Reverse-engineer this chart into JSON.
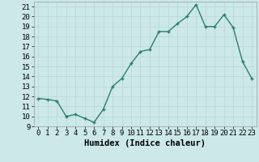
{
  "x": [
    0,
    1,
    2,
    3,
    4,
    5,
    6,
    7,
    8,
    9,
    10,
    11,
    12,
    13,
    14,
    15,
    16,
    17,
    18,
    19,
    20,
    21,
    22,
    23
  ],
  "y": [
    11.8,
    11.7,
    11.55,
    10.0,
    10.2,
    9.8,
    9.4,
    10.7,
    13.0,
    13.8,
    15.3,
    16.5,
    16.7,
    18.5,
    18.5,
    19.3,
    20.0,
    21.2,
    19.0,
    19.0,
    20.2,
    18.9,
    15.5,
    13.8
  ],
  "line_color": "#2e7d6e",
  "marker": "+",
  "marker_size": 3,
  "marker_linewidth": 1.0,
  "xlabel": "Humidex (Indice chaleur)",
  "xlim": [
    -0.5,
    23.5
  ],
  "ylim": [
    9,
    21.5
  ],
  "yticks": [
    9,
    10,
    11,
    12,
    13,
    14,
    15,
    16,
    17,
    18,
    19,
    20,
    21
  ],
  "xticks": [
    0,
    1,
    2,
    3,
    4,
    5,
    6,
    7,
    8,
    9,
    10,
    11,
    12,
    13,
    14,
    15,
    16,
    17,
    18,
    19,
    20,
    21,
    22,
    23
  ],
  "bg_color": "#cce8e8",
  "grid_color": "#b8d8d8",
  "tick_label_fontsize": 6.5,
  "xlabel_fontsize": 7.5,
  "linewidth": 1.0
}
